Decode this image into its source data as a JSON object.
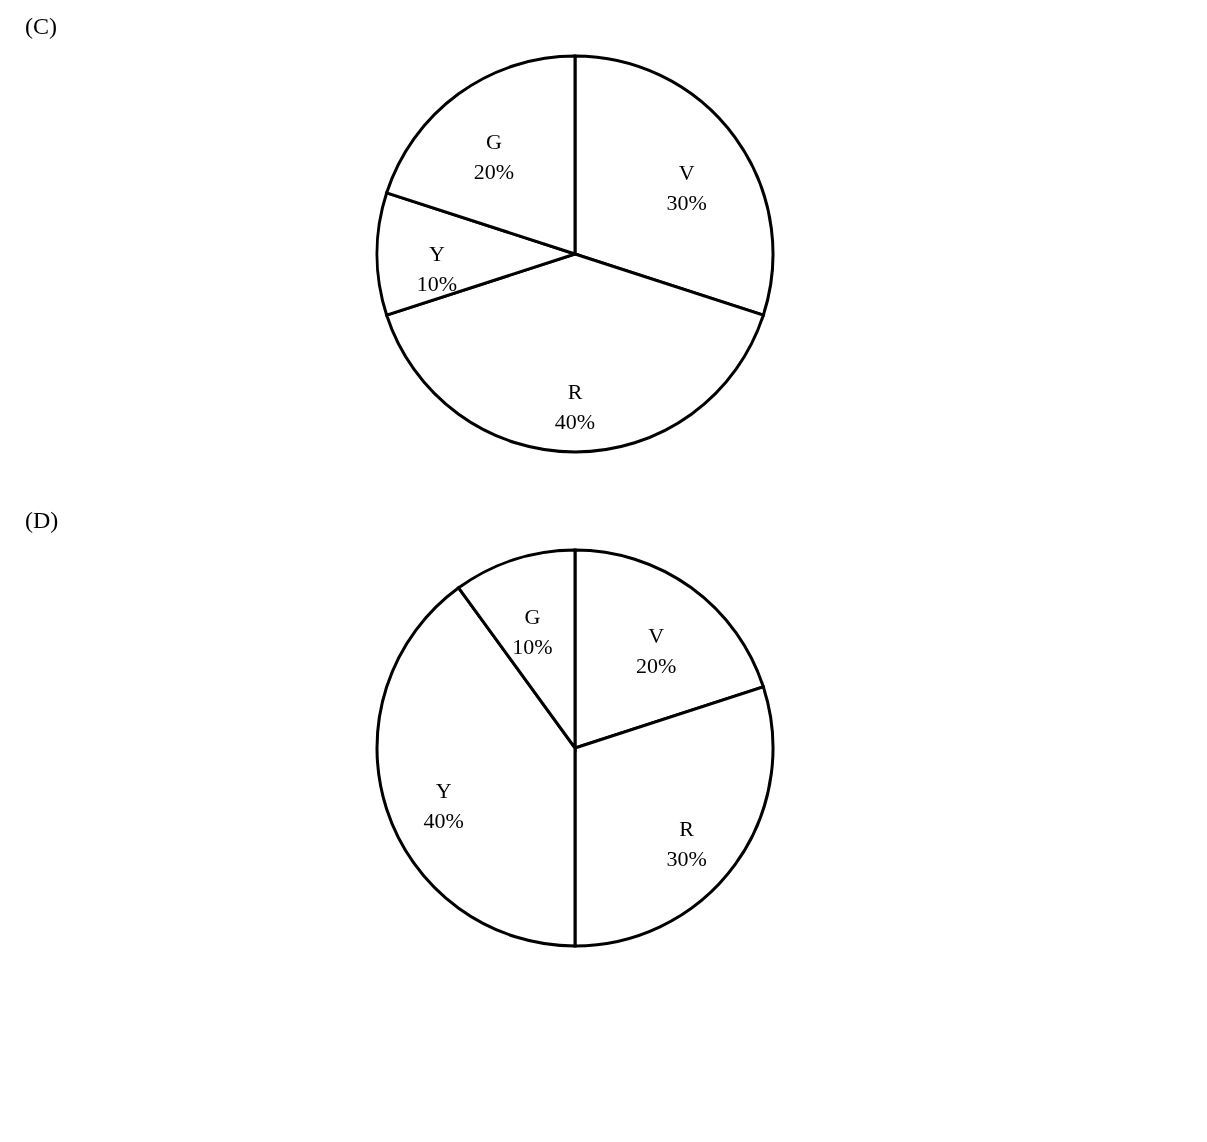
{
  "chart_data": [
    {
      "type": "pie",
      "title": "(C)",
      "categories": [
        "V",
        "R",
        "Y",
        "G"
      ],
      "values": [
        30,
        40,
        10,
        20
      ],
      "colors": [
        "#ffffff",
        "#ffffff",
        "#ffffff",
        "#ffffff"
      ],
      "value_labels": [
        "30%",
        "40%",
        "10%",
        "20%"
      ],
      "legend": false
    },
    {
      "type": "pie",
      "title": "(D)",
      "categories": [
        "V",
        "R",
        "Y",
        "G"
      ],
      "values": [
        20,
        30,
        40,
        10
      ],
      "colors": [
        "#ffffff",
        "#ffffff",
        "#ffffff",
        "#ffffff"
      ],
      "value_labels": [
        "20%",
        "30%",
        "40%",
        "10%"
      ],
      "legend": false
    }
  ]
}
